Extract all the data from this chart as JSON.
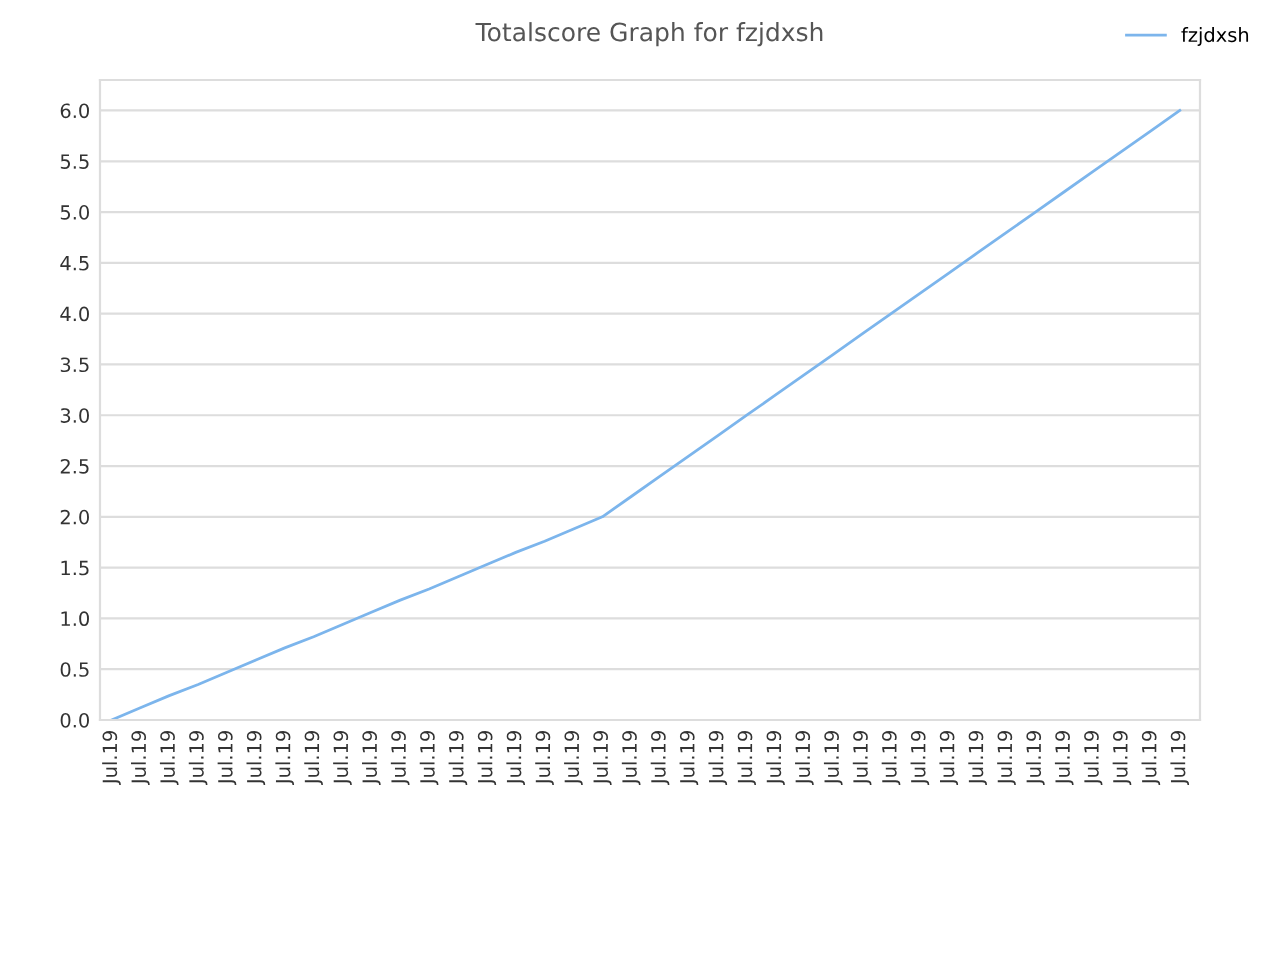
{
  "chart_data": {
    "type": "line",
    "title": "Totalscore Graph for fzjdxsh",
    "categories": [
      "Jul.19",
      "Jul.19",
      "Jul.19",
      "Jul.19",
      "Jul.19",
      "Jul.19",
      "Jul.19",
      "Jul.19",
      "Jul.19",
      "Jul.19",
      "Jul.19",
      "Jul.19",
      "Jul.19",
      "Jul.19",
      "Jul.19",
      "Jul.19",
      "Jul.19",
      "Jul.19",
      "Jul.19",
      "Jul.19",
      "Jul.19",
      "Jul.19",
      "Jul.19",
      "Jul.19",
      "Jul.19",
      "Jul.19",
      "Jul.19",
      "Jul.19",
      "Jul.19",
      "Jul.19",
      "Jul.19",
      "Jul.19",
      "Jul.19",
      "Jul.19",
      "Jul.19",
      "Jul.19",
      "Jul.19",
      "Jul.19"
    ],
    "series": [
      {
        "name": "fzjdxsh",
        "color": "#7cb5ec",
        "values": [
          0,
          0.12,
          0.24,
          0.35,
          0.47,
          0.59,
          0.71,
          0.82,
          0.94,
          1.06,
          1.18,
          1.29,
          1.41,
          1.53,
          1.65,
          1.76,
          1.88,
          2.0,
          2.2,
          2.4,
          2.6,
          2.8,
          3.0,
          3.2,
          3.4,
          3.6,
          3.8,
          4.0,
          4.2,
          4.4,
          4.6,
          4.8,
          5.0,
          5.2,
          5.4,
          5.6,
          5.8,
          6.0
        ]
      }
    ],
    "ylim": [
      0,
      6.3
    ],
    "yticks": [
      {
        "value": 0,
        "label": "0.0"
      },
      {
        "value": 0.5,
        "label": "0.5"
      },
      {
        "value": 1,
        "label": "1.0"
      },
      {
        "value": 1.5,
        "label": "1.5"
      },
      {
        "value": 2,
        "label": "2.0"
      },
      {
        "value": 2.5,
        "label": "2.5"
      },
      {
        "value": 3,
        "label": "3.0"
      },
      {
        "value": 3.5,
        "label": "3.5"
      },
      {
        "value": 4,
        "label": "4.0"
      },
      {
        "value": 4.5,
        "label": "4.5"
      },
      {
        "value": 5,
        "label": "5.0"
      },
      {
        "value": 5.5,
        "label": "5.5"
      },
      {
        "value": 6,
        "label": "6.0"
      }
    ],
    "grid": "y",
    "legend": "top right",
    "marker": "none",
    "line_style": "solid"
  }
}
